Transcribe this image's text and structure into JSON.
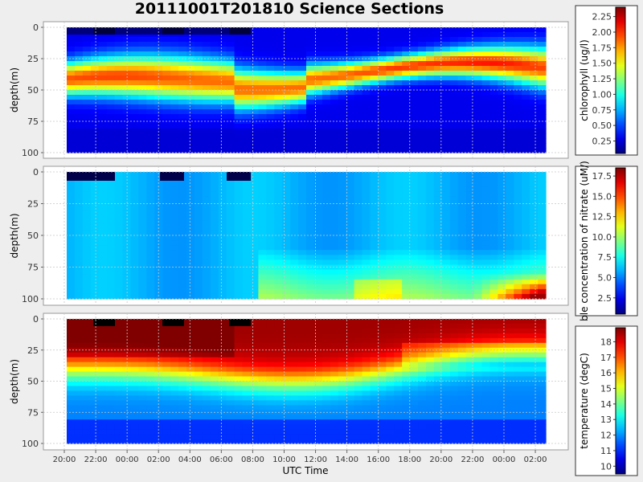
{
  "title": "20111001T201810 Science Sections",
  "chart_data": [
    {
      "type": "heatmap",
      "name": "chlorophyll",
      "ylabel": "depth(m)",
      "colorbar_label": "chlorophyll (ug/l)",
      "ylim": [
        0,
        100
      ],
      "y_ticks": [
        "0",
        "25",
        "50",
        "75",
        "100"
      ],
      "clim": [
        0.05,
        2.4
      ],
      "colorbar_ticks": [
        "0.25",
        "0.50",
        "0.75",
        "1.00",
        "1.25",
        "1.50",
        "1.75",
        "2.00",
        "2.25"
      ]
    },
    {
      "type": "heatmap",
      "name": "nitrate",
      "ylabel": "depth(m)",
      "colorbar_label": "ble concentration of nitrate (uM/)",
      "ylim": [
        0,
        100
      ],
      "y_ticks": [
        "0",
        "25",
        "50",
        "75",
        "100"
      ],
      "clim": [
        0.5,
        18.5
      ],
      "colorbar_ticks": [
        "2.5",
        "5.0",
        "7.5",
        "10.0",
        "12.5",
        "15.0",
        "17.5"
      ]
    },
    {
      "type": "heatmap",
      "name": "temperature",
      "ylabel": "depth(m)",
      "colorbar_label": "temperature (degC)",
      "ylim": [
        0,
        100
      ],
      "y_ticks": [
        "0",
        "25",
        "50",
        "75",
        "100"
      ],
      "clim": [
        9.5,
        18.9
      ],
      "colorbar_ticks": [
        "10",
        "11",
        "12",
        "13",
        "14",
        "15",
        "16",
        "17",
        "18"
      ]
    }
  ],
  "xlabel": "UTC Time",
  "x_ticks": [
    "20:00",
    "22:00",
    "00:00",
    "02:00",
    "04:00",
    "06:00",
    "08:00",
    "10:00",
    "12:00",
    "14:00",
    "16:00",
    "18:00",
    "20:00",
    "22:00",
    "00:00",
    "02:00"
  ],
  "colors": {
    "background": "#eeeeee",
    "plot_bg": "#ffffff",
    "grid": "#d0d0d0",
    "dark_cells": "#00004a"
  }
}
